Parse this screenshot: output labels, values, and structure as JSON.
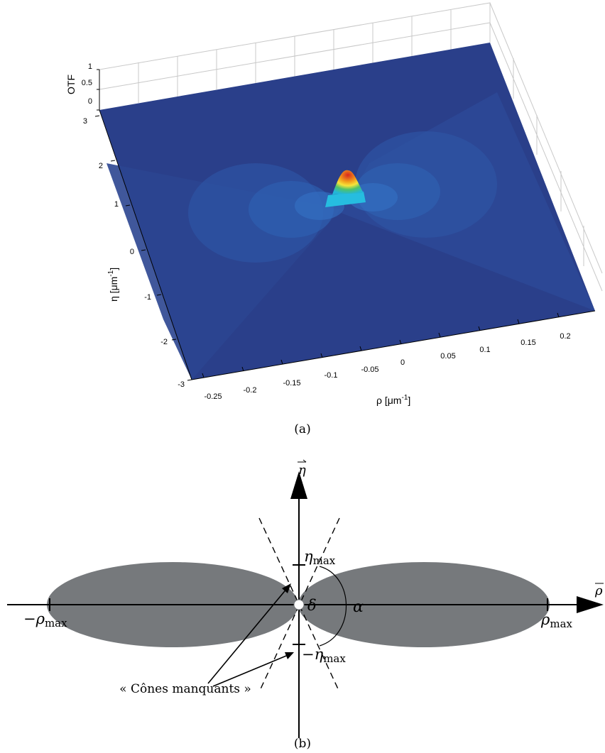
{
  "panel_a": {
    "caption": "(a)",
    "zlabel": "OTF",
    "ylabel": "η [μm",
    "ylabel_exp": "-1",
    "ylabel_close": "]",
    "xlabel": "ρ [μm",
    "xlabel_exp": "-1",
    "xlabel_close": "]",
    "z_ticks": [
      "1",
      "0.5",
      "0"
    ],
    "eta_ticks": [
      "3",
      "2",
      "1",
      "0",
      "-1",
      "-2",
      "-3"
    ],
    "rho_ticks": [
      "-0.25",
      "-0.2",
      "-0.15",
      "-0.1",
      "-0.05",
      "0",
      "0.05",
      "0.1",
      "0.15",
      "0.2"
    ]
  },
  "panel_b": {
    "caption": "(b)",
    "eta_axis": "η",
    "rho_axis": "ρ",
    "eta_max_sym": "η",
    "eta_max_sub": "max",
    "neg_eta_max_sym": "−η",
    "neg_eta_max_sub": "max",
    "rho_max_sym": "ρ",
    "rho_max_sub": "max",
    "neg_rho_max_sym": "−ρ",
    "neg_rho_max_sub": "max",
    "delta": "δ",
    "alpha": "α",
    "missing_cones": "« Cônes manquants »"
  },
  "colors": {
    "surface": "#2a3f8a",
    "lobe": "#76797c",
    "peak_top": "#c0392b"
  }
}
